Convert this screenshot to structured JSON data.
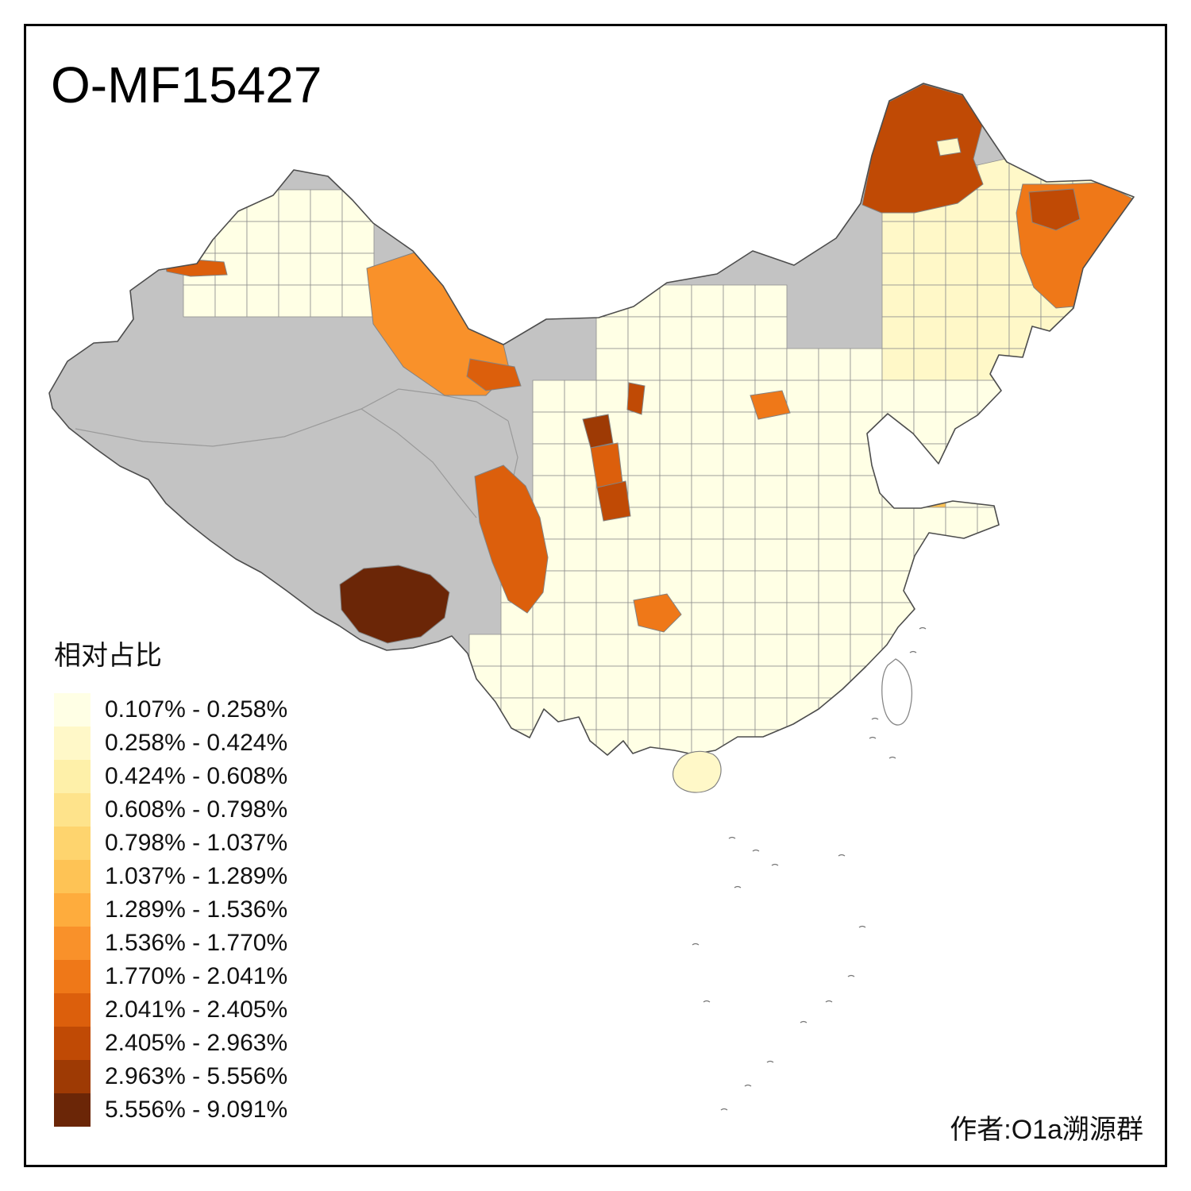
{
  "title": "O-MF15427",
  "attribution": "作者:O1a溯源群",
  "legend": {
    "title": "相对占比",
    "items": [
      {
        "label": "0.107% - 0.258%",
        "color": "#FFFFE5"
      },
      {
        "label": "0.258% - 0.424%",
        "color": "#FFF8C8"
      },
      {
        "label": "0.424% - 0.608%",
        "color": "#FEF0A9"
      },
      {
        "label": "0.608% - 0.798%",
        "color": "#FEE38B"
      },
      {
        "label": "0.798% - 1.037%",
        "color": "#FED46E"
      },
      {
        "label": "1.037% - 1.289%",
        "color": "#FEC355"
      },
      {
        "label": "1.289% - 1.536%",
        "color": "#FEAC3D"
      },
      {
        "label": "1.536% - 1.770%",
        "color": "#F9912A"
      },
      {
        "label": "1.770% - 2.041%",
        "color": "#EF7818"
      },
      {
        "label": "2.041% - 2.405%",
        "color": "#DC5F0C"
      },
      {
        "label": "2.405% - 2.963%",
        "color": "#C04A05"
      },
      {
        "label": "2.963% - 5.556%",
        "color": "#9E3A04"
      },
      {
        "label": "5.556% - 9.091%",
        "color": "#6B2607"
      }
    ]
  },
  "map": {
    "region": "China choropleth by prefecture",
    "no_data_color": "#C3C3C3",
    "border_color": "#4D4D4D",
    "sea_color": "#FFFFFF"
  }
}
